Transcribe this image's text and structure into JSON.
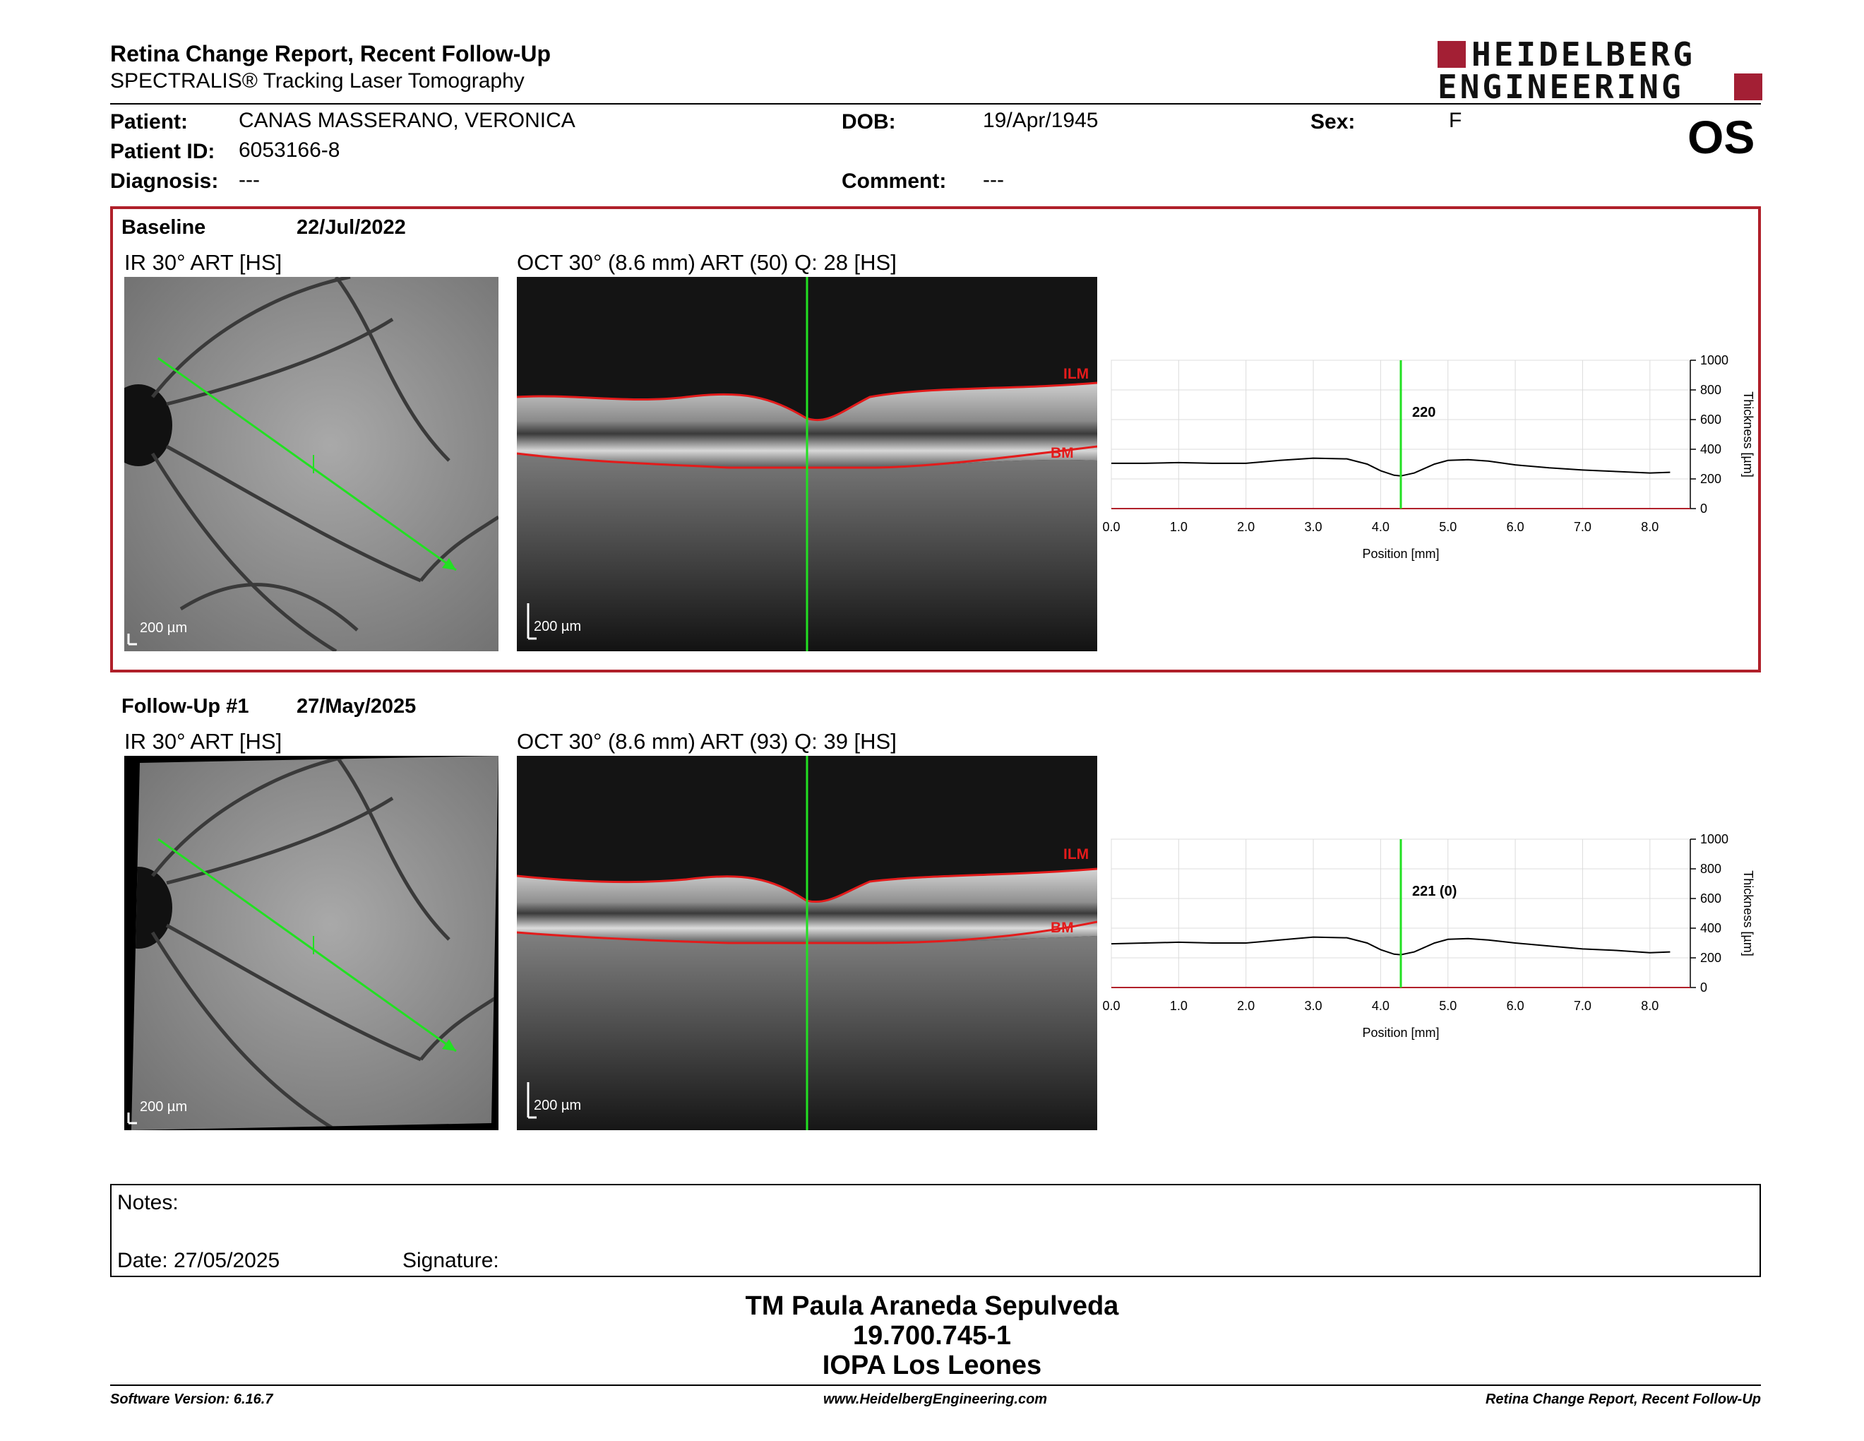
{
  "header": {
    "title": "Retina Change Report, Recent Follow-Up",
    "subtitle": "SPECTRALIS® Tracking Laser Tomography",
    "logo_line1": "HEIDELBERG",
    "logo_line2": "ENGINEERING",
    "eye": "OS"
  },
  "patient": {
    "patient_label": "Patient:",
    "patient_value": "CANAS MASSERANO, VERONICA",
    "id_label": "Patient ID:",
    "id_value": "6053166-8",
    "diagnosis_label": "Diagnosis:",
    "diagnosis_value": "---",
    "dob_label": "DOB:",
    "dob_value": "19/Apr/1945",
    "comment_label": "Comment:",
    "comment_value": "---",
    "sex_label": "Sex:",
    "sex_value": "F"
  },
  "baseline": {
    "label": "Baseline",
    "date": "22/Jul/2022",
    "ir_title": "IR 30° ART [HS]",
    "oct_title": "OCT 30° (8.6 mm) ART (50) Q: 28 [HS]",
    "scale": "200 µm",
    "ilm": "ILM",
    "bm": "BM",
    "readout": "220"
  },
  "followup": {
    "label": "Follow-Up #1",
    "date": "27/May/2025",
    "ir_title": "IR 30° ART [HS]",
    "oct_title": "OCT 30° (8.6 mm) ART (93) Q: 39 [HS]",
    "scale": "200 µm",
    "ilm": "ILM",
    "bm": "BM",
    "readout": "221 (0)"
  },
  "chart_data": [
    {
      "type": "line",
      "xlabel": "Position [mm]",
      "ylabel": "Thickness [µm]",
      "xlim": [
        0,
        8.6
      ],
      "ylim": [
        0,
        1000
      ],
      "x_ticks": [
        "0.0",
        "1.0",
        "2.0",
        "3.0",
        "4.0",
        "5.0",
        "6.0",
        "7.0",
        "8.0"
      ],
      "y_ticks": [
        "0",
        "200",
        "400",
        "600",
        "800",
        "1000"
      ],
      "cursor_x": 4.3,
      "readout": "220",
      "series": [
        {
          "x": [
            0.0,
            0.5,
            1.0,
            1.5,
            2.0,
            2.5,
            3.0,
            3.5,
            3.8,
            4.0,
            4.2,
            4.3,
            4.5,
            4.8,
            5.0,
            5.3,
            5.6,
            6.0,
            6.5,
            7.0,
            7.5,
            8.0,
            8.3
          ],
          "y": [
            305,
            305,
            310,
            305,
            305,
            325,
            340,
            335,
            300,
            255,
            225,
            220,
            240,
            300,
            325,
            330,
            320,
            295,
            275,
            260,
            250,
            240,
            245
          ]
        }
      ]
    },
    {
      "type": "line",
      "xlabel": "Position [mm]",
      "ylabel": "Thickness [µm]",
      "xlim": [
        0,
        8.6
      ],
      "ylim": [
        0,
        1000
      ],
      "x_ticks": [
        "0.0",
        "1.0",
        "2.0",
        "3.0",
        "4.0",
        "5.0",
        "6.0",
        "7.0",
        "8.0"
      ],
      "y_ticks": [
        "0",
        "200",
        "400",
        "600",
        "800",
        "1000"
      ],
      "cursor_x": 4.3,
      "readout": "221 (0)",
      "series": [
        {
          "x": [
            0.0,
            0.5,
            1.0,
            1.5,
            2.0,
            2.5,
            3.0,
            3.5,
            3.8,
            4.0,
            4.2,
            4.3,
            4.5,
            4.8,
            5.0,
            5.3,
            5.6,
            6.0,
            6.5,
            7.0,
            7.5,
            8.0,
            8.3
          ],
          "y": [
            295,
            300,
            305,
            300,
            300,
            320,
            340,
            335,
            300,
            255,
            225,
            221,
            240,
            300,
            325,
            330,
            320,
            300,
            280,
            260,
            250,
            235,
            240
          ]
        }
      ]
    }
  ],
  "notes": {
    "label": "Notes:",
    "date_label": "Date: 27/05/2025",
    "signature_label": "Signature:"
  },
  "signature": {
    "name": "TM Paula Araneda Sepulveda",
    "id": "19.700.745-1",
    "org": "IOPA Los Leones"
  },
  "footer": {
    "software": "Software Version: 6.16.7",
    "website": "www.HeidelbergEngineering.com",
    "report": "Retina Change Report, Recent Follow-Up"
  }
}
